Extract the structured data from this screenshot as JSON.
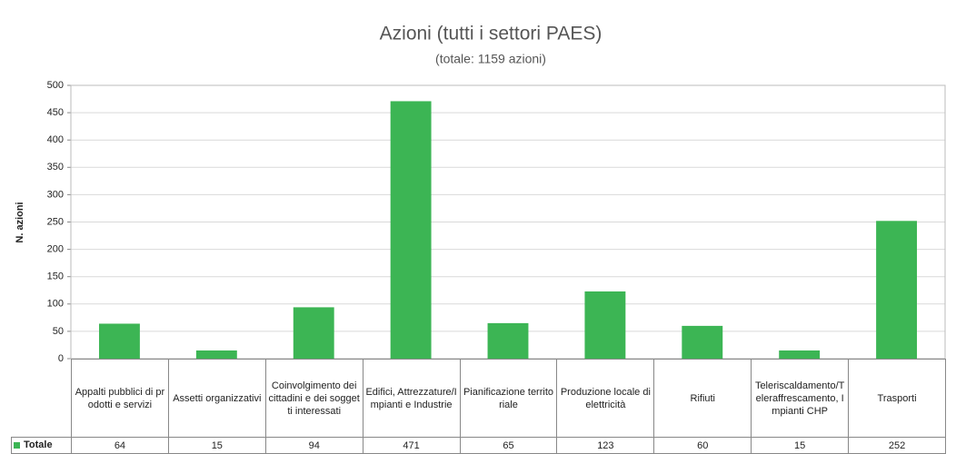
{
  "chart_data": {
    "type": "bar",
    "title": "Azioni (tutti i settori PAES)",
    "subtitle": "(totale: 1159 azioni)",
    "y_label": "N. azioni",
    "categories": [
      "Appalti pubblici di prodotti e servizi",
      "Assetti organizzativi",
      "Coinvolgimento dei cittadini e dei soggetti interessati",
      "Edifici, Attrezzature/Impianti e Industrie",
      "Pianificazione territoriale",
      "Produzione locale di elettricità",
      "Rifiuti",
      "Teleriscaldamento/Teleraffrescamento, Impianti CHP",
      "Trasporti"
    ],
    "series": [
      {
        "name": "Totale",
        "color": "#3cb554",
        "values": [
          64,
          15,
          94,
          471,
          65,
          123,
          60,
          15,
          252
        ]
      }
    ],
    "ylim": [
      0,
      500
    ],
    "yticks": [
      0,
      50,
      100,
      150,
      200,
      250,
      300,
      350,
      400,
      450,
      500
    ],
    "grid": true
  }
}
